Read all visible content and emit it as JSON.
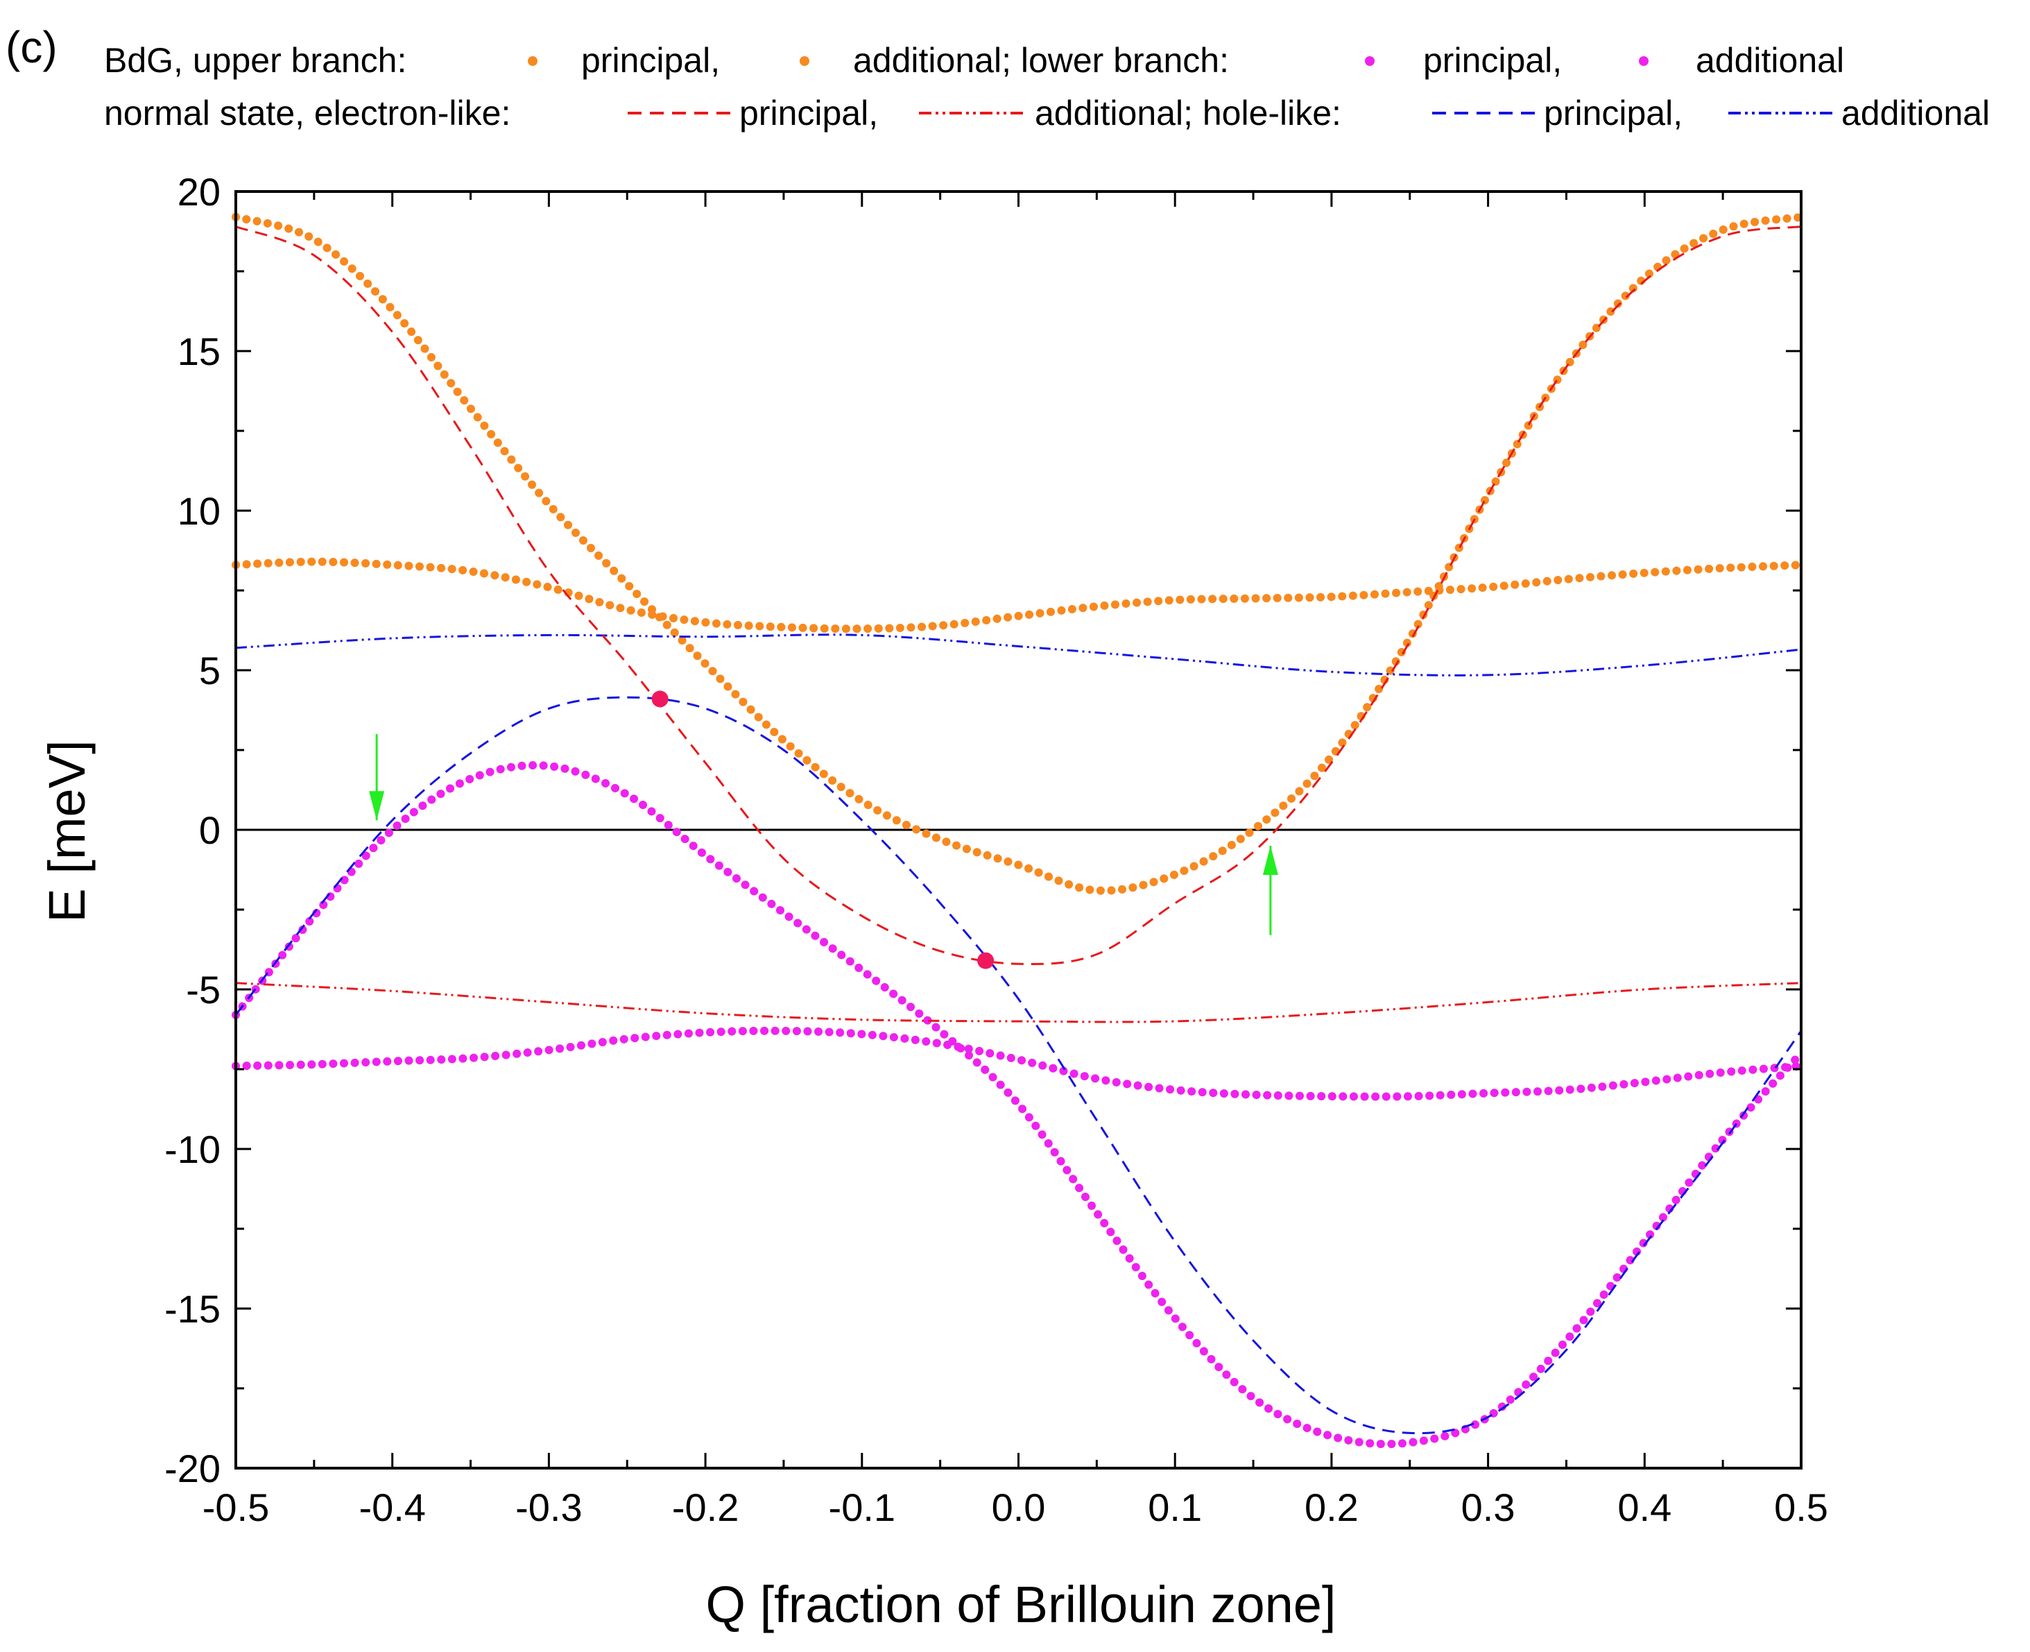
{
  "panel_label": "(c)",
  "legend": {
    "row1": {
      "prefix": "BdG, upper branch:",
      "upper_principal": "principal,",
      "upper_additional": "additional; lower branch:",
      "lower_principal": "principal,",
      "lower_additional": "additional"
    },
    "row2": {
      "prefix": "normal state, electron-like:",
      "electron_principal": "principal,",
      "electron_additional": "additional; hole-like:",
      "hole_principal": "principal,",
      "hole_additional": "additional"
    }
  },
  "colors": {
    "orange": "#f7891f",
    "magenta": "#ee22ee",
    "red": "#e8191b",
    "blue": "#1515e0",
    "marker": "#f0185c",
    "arrow": "#22ee22"
  },
  "chart_data": {
    "type": "line",
    "title": "",
    "xlabel": "Q [fraction of Brillouin zone]",
    "ylabel": "E [meV]",
    "xlim": [
      -0.5,
      0.5
    ],
    "ylim": [
      -20,
      20
    ],
    "xticks": [
      -0.5,
      -0.4,
      -0.3,
      -0.2,
      -0.1,
      0.0,
      0.1,
      0.2,
      0.3,
      0.4,
      0.5
    ],
    "xtick_labels": [
      "-0.5",
      "-0.4",
      "-0.3",
      "-0.2",
      "-0.1",
      "0.0",
      "0.1",
      "0.2",
      "0.3",
      "0.4",
      "0.5"
    ],
    "yticks": [
      -20,
      -15,
      -10,
      -5,
      0,
      5,
      10,
      15,
      20
    ],
    "ytick_labels": [
      "-20",
      "-15",
      "-10",
      "-5",
      "0",
      "5",
      "10",
      "15",
      "20"
    ],
    "zero_line": 0,
    "series": [
      {
        "name": "BdG upper branch principal",
        "style": "dotted-thick",
        "color": "orange",
        "x": [
          -0.5,
          -0.45,
          -0.4,
          -0.35,
          -0.3,
          -0.25,
          -0.2,
          -0.15,
          -0.1,
          -0.05,
          0.0,
          0.05,
          0.1,
          0.15,
          0.2,
          0.25,
          0.3,
          0.35,
          0.4,
          0.45,
          0.5
        ],
        "y": [
          19.2,
          18.5,
          16.3,
          13.2,
          10.2,
          7.7,
          5.2,
          2.8,
          0.9,
          -0.3,
          -1.1,
          -1.9,
          -1.4,
          0.0,
          2.3,
          6.0,
          10.5,
          14.5,
          17.3,
          18.8,
          19.2
        ]
      },
      {
        "name": "BdG upper branch additional",
        "style": "dotted-thick",
        "color": "orange",
        "x": [
          -0.5,
          -0.45,
          -0.4,
          -0.35,
          -0.3,
          -0.25,
          -0.2,
          -0.15,
          -0.1,
          -0.05,
          0.0,
          0.05,
          0.1,
          0.15,
          0.2,
          0.25,
          0.3,
          0.35,
          0.4,
          0.45,
          0.5
        ],
        "y": [
          8.3,
          8.4,
          8.3,
          8.1,
          7.6,
          6.9,
          6.5,
          6.35,
          6.3,
          6.4,
          6.7,
          7.0,
          7.2,
          7.25,
          7.3,
          7.45,
          7.6,
          7.85,
          8.05,
          8.2,
          8.3
        ]
      },
      {
        "name": "BdG lower branch principal",
        "style": "dotted-thick",
        "color": "magenta",
        "x": [
          -0.5,
          -0.45,
          -0.4,
          -0.35,
          -0.3,
          -0.25,
          -0.2,
          -0.15,
          -0.1,
          -0.05,
          0.0,
          0.05,
          0.1,
          0.15,
          0.2,
          0.25,
          0.3,
          0.35,
          0.4,
          0.45,
          0.5
        ],
        "y": [
          -5.8,
          -2.7,
          0.0,
          1.6,
          2.0,
          1.1,
          -0.8,
          -2.6,
          -4.4,
          -6.3,
          -8.6,
          -12.0,
          -15.3,
          -17.8,
          -19.0,
          -19.2,
          -18.4,
          -16.0,
          -12.9,
          -9.7,
          -7.0
        ]
      },
      {
        "name": "BdG lower branch additional",
        "style": "dotted-thick",
        "color": "magenta",
        "x": [
          -0.5,
          -0.45,
          -0.4,
          -0.35,
          -0.3,
          -0.25,
          -0.2,
          -0.15,
          -0.1,
          -0.05,
          0.0,
          0.05,
          0.1,
          0.15,
          0.2,
          0.25,
          0.3,
          0.35,
          0.4,
          0.45,
          0.5
        ],
        "y": [
          -7.4,
          -7.35,
          -7.25,
          -7.15,
          -6.9,
          -6.55,
          -6.35,
          -6.3,
          -6.4,
          -6.7,
          -7.2,
          -7.8,
          -8.15,
          -8.3,
          -8.35,
          -8.35,
          -8.25,
          -8.15,
          -7.9,
          -7.6,
          -7.4
        ]
      },
      {
        "name": "normal state electron-like principal",
        "style": "dashed",
        "color": "red",
        "x": [
          -0.5,
          -0.45,
          -0.4,
          -0.35,
          -0.3,
          -0.25,
          -0.2,
          -0.15,
          -0.1,
          -0.05,
          0.0,
          0.05,
          0.1,
          0.15,
          0.2,
          0.25,
          0.3,
          0.35,
          0.4,
          0.45,
          0.5
        ],
        "y": [
          18.9,
          18.0,
          15.6,
          12.0,
          8.1,
          5.2,
          2.1,
          -0.9,
          -2.7,
          -3.8,
          -4.2,
          -3.9,
          -2.3,
          -0.7,
          2.1,
          5.9,
          10.5,
          14.5,
          17.2,
          18.6,
          18.9
        ]
      },
      {
        "name": "normal state electron-like additional",
        "style": "dash-dot-dot",
        "color": "red",
        "x": [
          -0.5,
          -0.4,
          -0.3,
          -0.2,
          -0.1,
          0.0,
          0.1,
          0.2,
          0.3,
          0.4,
          0.5
        ],
        "y": [
          -4.8,
          -5.05,
          -5.4,
          -5.75,
          -5.95,
          -6.0,
          -6.0,
          -5.75,
          -5.4,
          -5.0,
          -4.8
        ]
      },
      {
        "name": "normal state hole-like principal",
        "style": "dashed",
        "color": "blue",
        "x": [
          -0.5,
          -0.45,
          -0.4,
          -0.35,
          -0.3,
          -0.25,
          -0.2,
          -0.15,
          -0.1,
          -0.05,
          0.0,
          0.05,
          0.1,
          0.15,
          0.2,
          0.25,
          0.3,
          0.35,
          0.4,
          0.45,
          0.5
        ],
        "y": [
          -5.8,
          -2.6,
          0.3,
          2.4,
          3.8,
          4.15,
          3.8,
          2.5,
          0.3,
          -2.3,
          -5.3,
          -9.1,
          -12.9,
          -16.0,
          -18.2,
          -18.9,
          -18.4,
          -16.3,
          -13.0,
          -9.8,
          -6.3
        ]
      },
      {
        "name": "normal state hole-like additional",
        "style": "dash-dot-dot",
        "color": "blue",
        "x": [
          -0.5,
          -0.4,
          -0.3,
          -0.2,
          -0.1,
          0.0,
          0.1,
          0.2,
          0.3,
          0.4,
          0.5
        ],
        "y": [
          5.7,
          6.0,
          6.1,
          6.05,
          6.1,
          5.75,
          5.35,
          4.95,
          4.85,
          5.15,
          5.65
        ]
      }
    ],
    "markers": [
      {
        "x": -0.229,
        "y": 4.1
      },
      {
        "x": -0.021,
        "y": -4.1
      }
    ],
    "arrows": [
      {
        "x": -0.41,
        "y_from": 3.0,
        "y_to": 0.3,
        "direction": "down"
      },
      {
        "x": 0.161,
        "y_from": -3.3,
        "y_to": -0.5,
        "direction": "up"
      }
    ]
  }
}
